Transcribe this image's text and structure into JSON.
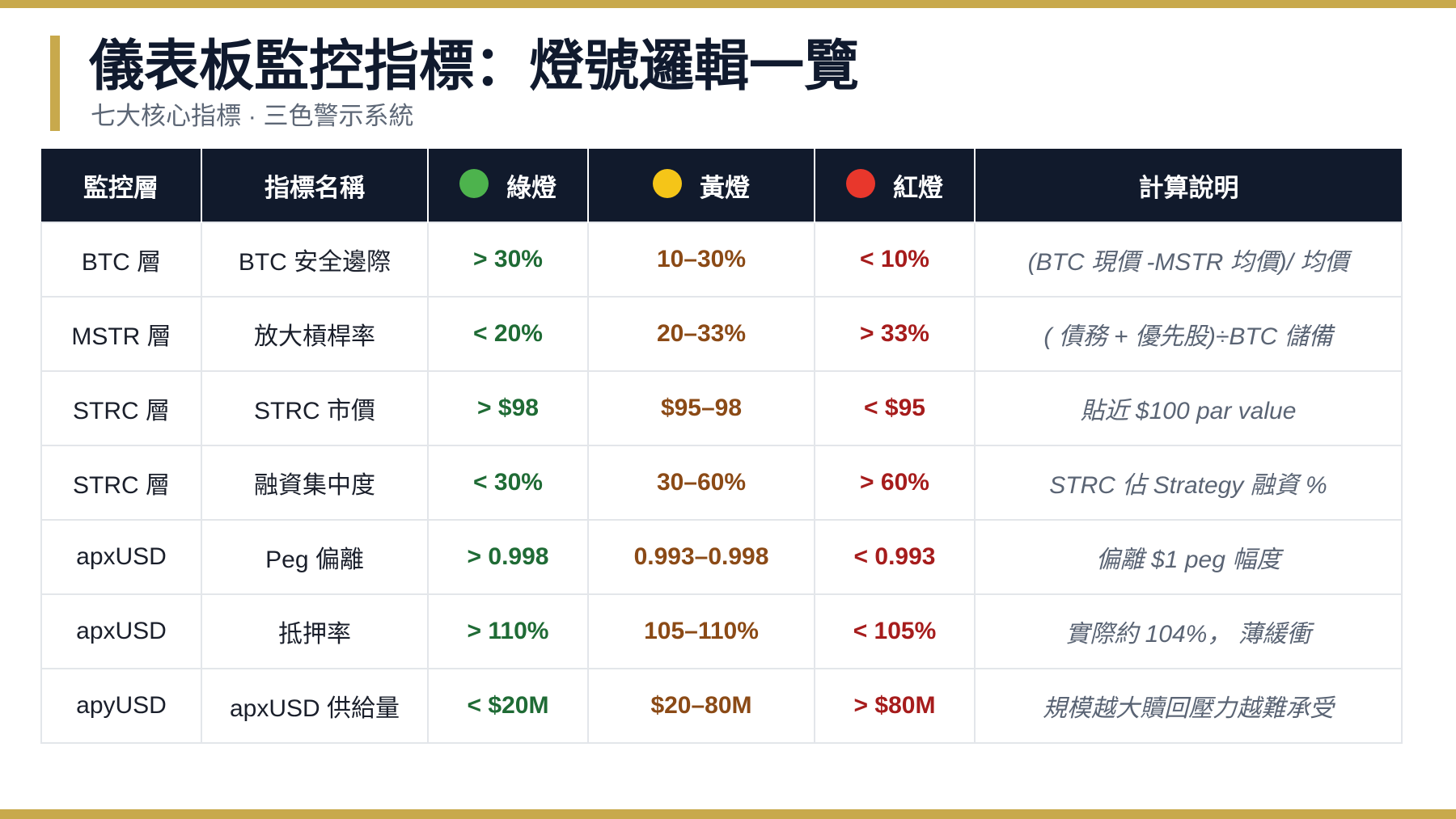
{
  "title": "儀表板監控指標：燈號邏輯一覽",
  "subtitle": "七大核心指標 · 三色警示系統",
  "colors": {
    "accent_gold": "#c8a94c",
    "header_bg": "#111a2c",
    "green_light": "#4db34d",
    "yellow_light": "#f5c518",
    "red_light": "#e8372c",
    "green_text": "#1f6b35",
    "yellow_text": "#8b4a16",
    "red_text": "#a61c1c"
  },
  "table": {
    "headers": {
      "layer": "監控層",
      "name": "指標名稱",
      "green": "綠燈",
      "yellow": "黃燈",
      "red": "紅燈",
      "note": "計算說明"
    },
    "header_icons": {
      "green": "green-circle-icon",
      "yellow": "yellow-circle-icon",
      "red": "red-circle-icon"
    },
    "rows": [
      {
        "layer": "BTC 層",
        "name": "BTC 安全邊際",
        "green": "> 30%",
        "yellow": "10–30%",
        "red": "< 10%",
        "note": "(BTC 現價 -MSTR 均價)/ 均價"
      },
      {
        "layer": "MSTR 層",
        "name": "放大槓桿率",
        "green": "< 20%",
        "yellow": "20–33%",
        "red": "> 33%",
        "note": "( 債務 + 優先股)÷BTC 儲備"
      },
      {
        "layer": "STRC 層",
        "name": "STRC 市價",
        "green": "> $98",
        "yellow": "$95–98",
        "red": "< $95",
        "note": "貼近 $100 par value"
      },
      {
        "layer": "STRC 層",
        "name": "融資集中度",
        "green": "< 30%",
        "yellow": "30–60%",
        "red": "> 60%",
        "note": "STRC 佔 Strategy 融資 %"
      },
      {
        "layer": "apxUSD",
        "name": "Peg 偏離",
        "green": "> 0.998",
        "yellow": "0.993–0.998",
        "red": "< 0.993",
        "note": "偏離 $1 peg 幅度"
      },
      {
        "layer": "apxUSD",
        "name": "抵押率",
        "green": "> 110%",
        "yellow": "105–110%",
        "red": "< 105%",
        "note": "實際約 104%， 薄緩衝"
      },
      {
        "layer": "apyUSD",
        "name": "apxUSD 供給量",
        "green": "< $20M",
        "yellow": "$20–80M",
        "red": "> $80M",
        "note": "規模越大贖回壓力越難承受"
      }
    ]
  }
}
